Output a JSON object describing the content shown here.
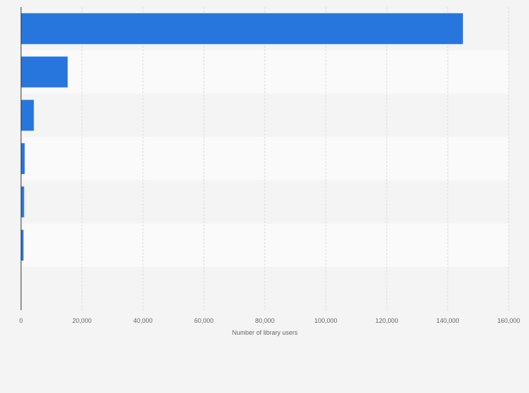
{
  "chart_data": {
    "type": "bar",
    "orientation": "horizontal",
    "categories": [
      "",
      "",
      "",
      "",
      "",
      ""
    ],
    "values": [
      145000,
      15300,
      4200,
      1200,
      1000,
      800
    ],
    "xlabel": "Number of library users",
    "ylabel": "",
    "xlim": [
      0,
      160000
    ],
    "xticks": [
      0,
      20000,
      40000,
      60000,
      80000,
      100000,
      120000,
      140000,
      160000
    ],
    "xtick_labels": [
      "0",
      "20,000",
      "40,000",
      "60,000",
      "80,000",
      "100,000",
      "120,000",
      "140,000",
      "160,000"
    ],
    "grid": true,
    "legend": "none",
    "colors": {
      "bar": "#2776dd",
      "band_light": "#fafafa",
      "band_dark": "#f4f4f4",
      "grid": "#dcdcdc",
      "axis": "#333333"
    }
  }
}
